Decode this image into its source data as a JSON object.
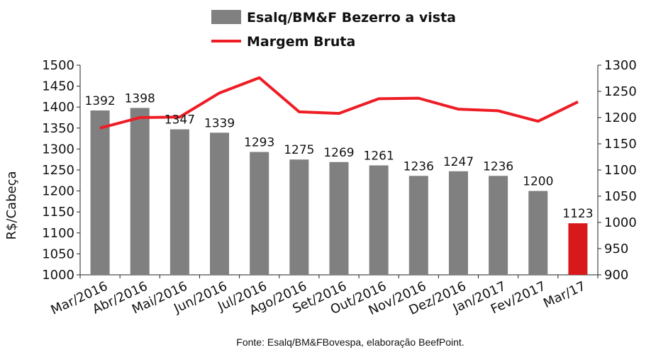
{
  "legend": {
    "bar_series_label": "Esalq/BM&F Bezerro a vista",
    "line_series_label": "Margem Bruta"
  },
  "axes": {
    "y_left_label": "R$/Cabeça"
  },
  "source_note": "Fonte: Esalq/BM&FBovespa, elaboração BeefPoint.",
  "colors": {
    "bar": "#808080",
    "bar_highlight": "#d7191c",
    "line": "#ee1c24"
  },
  "chart_data": {
    "type": "bar",
    "categories": [
      "Mar/2016",
      "Abr/2016",
      "Mai/2016",
      "Jun/2016",
      "Jul/2016",
      "Ago/2016",
      "Set/2016",
      "Out/2016",
      "Nov/2016",
      "Dez/2016",
      "Jan/2017",
      "Fev/2017",
      "Mar/17"
    ],
    "series": [
      {
        "name": "Esalq/BM&F Bezerro a vista",
        "type": "bar",
        "axis": "left",
        "values": [
          1392,
          1398,
          1347,
          1339,
          1293,
          1275,
          1269,
          1261,
          1236,
          1247,
          1236,
          1200,
          1123
        ],
        "data_labels": [
          "1392",
          "1398",
          "1347",
          "1339",
          "1293",
          "1275",
          "1269",
          "1261",
          "1236",
          "1247",
          "1236",
          "1200",
          "1123"
        ],
        "highlight_index": 12
      },
      {
        "name": "Margem Bruta",
        "type": "line",
        "axis": "right",
        "values": [
          1180,
          1200,
          1201,
          1247,
          1276,
          1211,
          1208,
          1236,
          1237,
          1216,
          1213,
          1193,
          1230
        ]
      }
    ],
    "ylabel": "R$/Cabeça",
    "ylim": [
      1000,
      1500
    ],
    "y_ticks": [
      1000,
      1050,
      1100,
      1150,
      1200,
      1250,
      1300,
      1350,
      1400,
      1450,
      1500
    ],
    "y2lim": [
      900,
      1300
    ],
    "y2_ticks": [
      900,
      950,
      1000,
      1050,
      1100,
      1150,
      1200,
      1250,
      1300
    ],
    "grid": false,
    "legend_position": "top-center"
  }
}
